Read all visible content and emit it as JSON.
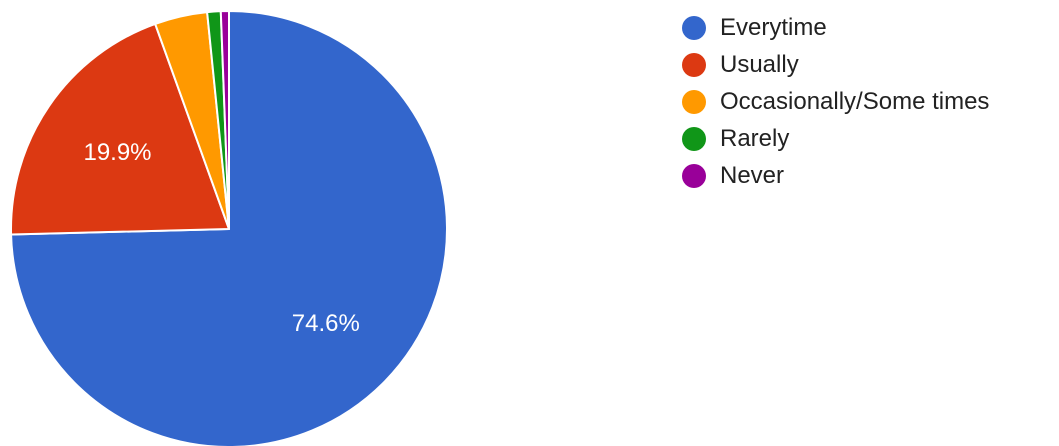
{
  "chart_data": {
    "type": "pie",
    "categories": [
      "Everytime",
      "Usually",
      "Occasionally/Some times",
      "Rarely",
      "Never"
    ],
    "values": [
      74.6,
      19.9,
      3.9,
      1.0,
      0.6
    ],
    "value_labels": [
      "74.6%",
      "19.9%",
      "",
      "",
      ""
    ],
    "colors": [
      "#3366cc",
      "#dc3912",
      "#ff9900",
      "#109618",
      "#990099"
    ],
    "start_angle_deg": 0,
    "direction": "clockwise",
    "legend_position": "right"
  }
}
